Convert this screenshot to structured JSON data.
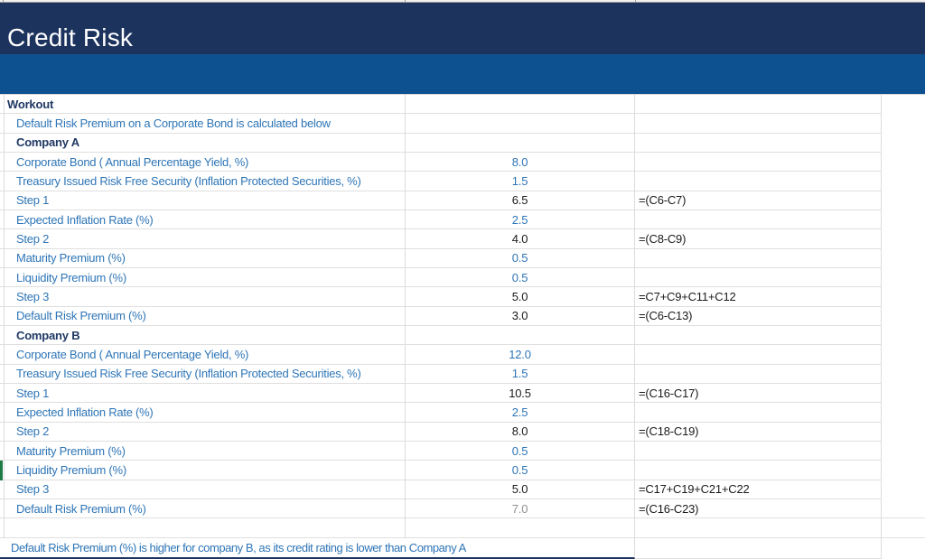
{
  "title": "Credit Risk",
  "colors": {
    "title_band": "#1c335e",
    "sub_band": "#0d5191",
    "label_blue": "#2e75b6",
    "heading_navy": "#1f3864",
    "value_black": "#1a1a1a",
    "value_gray": "#909090",
    "gridline": "#dcdcdc",
    "selection_green": "#1e7b45"
  },
  "sheet": {
    "rows": [
      {
        "kind": "heading",
        "label": "Workout",
        "workout": true
      },
      {
        "kind": "label",
        "label": "Default Risk Premium on a Corporate Bond is calculated below"
      },
      {
        "kind": "heading",
        "label": "Company A"
      },
      {
        "kind": "label",
        "label": "Corporate Bond ( Annual Percentage Yield, %)",
        "value": "8.0",
        "value_color": "blue"
      },
      {
        "kind": "label",
        "label": "Treasury Issued Risk Free Security (Inflation Protected Securities, %)",
        "value": "1.5",
        "value_color": "blue"
      },
      {
        "kind": "label",
        "label": "Step 1",
        "value": "6.5",
        "value_color": "black",
        "formula": "=(C6-C7)"
      },
      {
        "kind": "label",
        "label": "Expected Inflation Rate (%)",
        "value": "2.5",
        "value_color": "blue"
      },
      {
        "kind": "label",
        "label": "Step 2",
        "value": "4.0",
        "value_color": "black",
        "formula": "=(C8-C9)"
      },
      {
        "kind": "label",
        "label": "Maturity Premium (%)",
        "value": "0.5",
        "value_color": "blue"
      },
      {
        "kind": "label",
        "label": "Liquidity Premium (%)",
        "value": "0.5",
        "value_color": "blue"
      },
      {
        "kind": "label",
        "label": "Step 3",
        "value": "5.0",
        "value_color": "black",
        "formula": "=C7+C9+C11+C12"
      },
      {
        "kind": "label",
        "label": "Default Risk Premium (%)",
        "value": "3.0",
        "value_color": "black",
        "formula": "=(C6-C13)"
      },
      {
        "kind": "heading",
        "label": "Company B"
      },
      {
        "kind": "label",
        "label": "Corporate Bond ( Annual Percentage Yield, %)",
        "value": "12.0",
        "value_color": "blue"
      },
      {
        "kind": "label",
        "label": "Treasury Issued Risk Free Security (Inflation Protected Securities, %)",
        "value": "1.5",
        "value_color": "blue"
      },
      {
        "kind": "label",
        "label": "Step 1",
        "value": "10.5",
        "value_color": "black",
        "formula": "=(C16-C17)"
      },
      {
        "kind": "label",
        "label": "Expected Inflation Rate (%)",
        "value": "2.5",
        "value_color": "blue"
      },
      {
        "kind": "label",
        "label": "Step 2",
        "value": "8.0",
        "value_color": "black",
        "formula": "=(C18-C19)"
      },
      {
        "kind": "label",
        "label": "Maturity Premium (%)",
        "value": "0.5",
        "value_color": "blue"
      },
      {
        "kind": "label",
        "label": "Liquidity Premium (%)",
        "value": "0.5",
        "value_color": "blue",
        "marker": true
      },
      {
        "kind": "label",
        "label": "Step 3",
        "value": "5.0",
        "value_color": "black",
        "formula": "=C17+C19+C21+C22"
      },
      {
        "kind": "label",
        "label": "Default Risk Premium (%)",
        "value": "7.0",
        "value_color": "gray",
        "formula": "=(C16-C23)",
        "full_width": true
      },
      {
        "kind": "blank",
        "full_width": true
      },
      {
        "kind": "note",
        "label": "Default Risk Premium (%) is higher for company B, as its credit rating is lower than Company A"
      }
    ]
  }
}
